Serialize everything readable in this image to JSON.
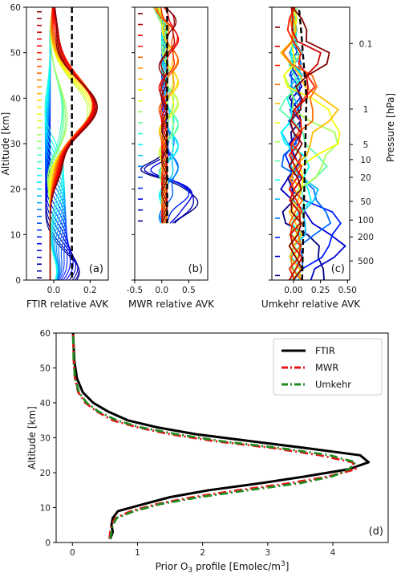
{
  "chart_data": [
    {
      "type": "line",
      "panel_label": "(a)",
      "xlabel": "FTIR relative AVK",
      "ylabel": "Altitude [km]",
      "xlim": [
        -0.15,
        0.3
      ],
      "ylim": [
        0,
        60
      ],
      "xticks": [
        "0.0",
        "0.2"
      ],
      "xtick_values": [
        0.0,
        0.2
      ],
      "yticks": [
        "0",
        "10",
        "20",
        "30",
        "40",
        "50",
        "60"
      ],
      "series_description_count": 40,
      "colormap": "jet",
      "reference_line": {
        "style": "dashed",
        "color": "#000000",
        "x": 0.1
      },
      "peak_altitudes_km": [
        0.5,
        1.5,
        3,
        4.5,
        6,
        7.5,
        9,
        10.5,
        12,
        13.5,
        15,
        16.5,
        18,
        19.5,
        21,
        22.5,
        24,
        25.5,
        27,
        28.5,
        30,
        31.5,
        33,
        34.5,
        36,
        37.5,
        39,
        40.5,
        42,
        43.5,
        45,
        46.5,
        48,
        49.5,
        51,
        52.5,
        54,
        55.5,
        57,
        58.5
      ]
    },
    {
      "type": "line",
      "panel_label": "(b)",
      "xlabel": "MWR relative AVK",
      "xlim": [
        -0.5,
        0.85
      ],
      "ylim": [
        0,
        60
      ],
      "xticks": [
        "-0.5",
        "0.0",
        "0.5"
      ],
      "xtick_values": [
        -0.5,
        0.0,
        0.5
      ],
      "reference_line": {
        "style": "dashed",
        "color": "#000000",
        "x": 0.1
      }
    },
    {
      "type": "line",
      "panel_label": "(c)",
      "xlabel": "Umkehr relative AVK",
      "right_axis_label": "Pressure [hPa]",
      "xlim": [
        -0.2,
        0.52
      ],
      "ylim": [
        0,
        60
      ],
      "xticks": [
        "0.00",
        "0.25",
        "0.50"
      ],
      "xtick_values": [
        0.0,
        0.25,
        0.5
      ],
      "pressure_ticks": [
        {
          "label": "0.1",
          "alt": 52.0
        },
        {
          "label": "1",
          "alt": 37.6
        },
        {
          "label": "5",
          "alt": 29.8
        },
        {
          "label": "10",
          "alt": 26.5
        },
        {
          "label": "20",
          "alt": 22.6
        },
        {
          "label": "50",
          "alt": 17.3
        },
        {
          "label": "100",
          "alt": 13.2
        },
        {
          "label": "200",
          "alt": 9.5
        },
        {
          "label": "500",
          "alt": 4.2
        }
      ],
      "reference_line": {
        "style": "dashed",
        "color": "#000000"
      }
    },
    {
      "type": "line",
      "panel_label": "(d)",
      "xlabel_prefix": "Prior O",
      "xlabel_sub": "3",
      "xlabel_mid": " profile [Emolec/m",
      "xlabel_sup": "3",
      "xlabel_end": "]",
      "ylabel": "Altitude [km]",
      "xlim": [
        -0.25,
        4.85
      ],
      "ylim": [
        0,
        60
      ],
      "xticks": [
        "0",
        "1",
        "2",
        "3",
        "4"
      ],
      "xtick_values": [
        0,
        1,
        2,
        3,
        4
      ],
      "yticks": [
        "0",
        "10",
        "20",
        "30",
        "40",
        "50",
        "60"
      ],
      "legend_position": "top-right",
      "series": [
        {
          "name": "FTIR",
          "color": "#000000",
          "style": "solid",
          "x": [
            0.58,
            0.62,
            0.6,
            0.62,
            0.7,
            1.1,
            1.5,
            2.1,
            2.9,
            3.6,
            4.25,
            4.55,
            4.42,
            3.6,
            2.75,
            1.9,
            1.3,
            0.85,
            0.55,
            0.32,
            0.16,
            0.07,
            0.03,
            0.01
          ],
          "y": [
            1,
            3,
            5,
            7,
            9,
            11,
            13,
            15,
            17,
            19,
            21,
            23,
            25,
            27,
            29,
            31,
            33,
            35,
            37.5,
            40,
            43,
            47,
            52,
            60
          ]
        },
        {
          "name": "MWR",
          "color": "#e8141a",
          "style": "dashdot",
          "x": [
            0.57,
            0.58,
            0.6,
            0.66,
            0.9,
            1.3,
            1.85,
            2.55,
            3.35,
            3.95,
            4.35,
            4.3,
            3.8,
            3.1,
            2.2,
            1.5,
            1.0,
            0.62,
            0.38,
            0.2,
            0.09,
            0.04,
            0.02,
            0.01
          ],
          "y": [
            1,
            3,
            5,
            7,
            9,
            11,
            13,
            15,
            17,
            19,
            21,
            23,
            25,
            27,
            29,
            31,
            33,
            35,
            37.5,
            40,
            43,
            47,
            52,
            60
          ]
        },
        {
          "name": "Umkehr",
          "color": "#1f8b1f",
          "style": "dashdot",
          "x": [
            0.58,
            0.6,
            0.62,
            0.68,
            0.95,
            1.35,
            1.95,
            2.7,
            3.5,
            4.0,
            4.25,
            4.35,
            3.95,
            3.2,
            2.3,
            1.6,
            1.05,
            0.68,
            0.4,
            0.22,
            0.1,
            0.04,
            0.02,
            0.01
          ],
          "y": [
            1,
            3,
            5,
            7,
            9,
            11,
            13,
            15,
            17,
            19,
            21,
            23,
            25,
            27,
            29,
            31,
            33,
            35,
            37.5,
            40,
            43,
            47,
            52,
            60
          ]
        }
      ]
    }
  ]
}
